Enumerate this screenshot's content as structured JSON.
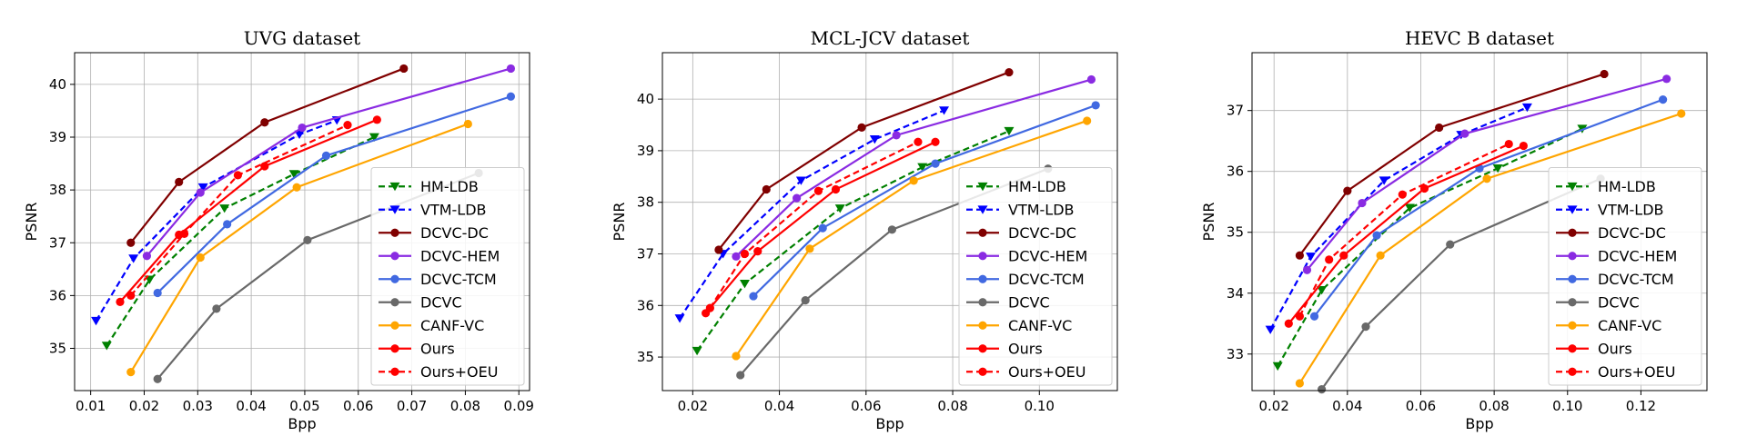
{
  "chart_data": [
    {
      "type": "line",
      "title": "UVG dataset",
      "xlabel": "Bpp",
      "ylabel": "PSNR",
      "xlim": [
        0.007,
        0.092
      ],
      "ylim": [
        34.2,
        40.6
      ],
      "xticks": [
        0.01,
        0.02,
        0.03,
        0.04,
        0.05,
        0.06,
        0.07,
        0.08,
        0.09
      ],
      "xtick_labels": [
        "0.01",
        "0.02",
        "0.03",
        "0.04",
        "0.05",
        "0.06",
        "0.07",
        "0.08",
        "0.09"
      ],
      "yticks": [
        35,
        36,
        37,
        38,
        39,
        40
      ],
      "ytick_labels": [
        "35",
        "36",
        "37",
        "38",
        "39",
        "40"
      ],
      "grid": true,
      "legend_position": "lower-right",
      "series": [
        {
          "name": "HM-LDB",
          "color": "#008000",
          "dashed": true,
          "marker": "triangle-down",
          "x": [
            0.013,
            0.021,
            0.035,
            0.048,
            0.063
          ],
          "y": [
            35.05,
            36.3,
            37.65,
            38.3,
            39.0
          ]
        },
        {
          "name": "VTM-LDB",
          "color": "#0000ff",
          "dashed": true,
          "marker": "triangle-down",
          "x": [
            0.011,
            0.018,
            0.031,
            0.049,
            0.056
          ],
          "y": [
            35.52,
            36.7,
            38.05,
            39.05,
            39.32
          ]
        },
        {
          "name": "DCVC-DC",
          "color": "#800000",
          "dashed": false,
          "marker": "circle",
          "x": [
            0.0175,
            0.0265,
            0.0425,
            0.0685
          ],
          "y": [
            37.0,
            38.15,
            39.28,
            40.3
          ]
        },
        {
          "name": "DCVC-HEM",
          "color": "#8a2be2",
          "dashed": false,
          "marker": "circle",
          "x": [
            0.0205,
            0.0305,
            0.0495,
            0.0885
          ],
          "y": [
            36.75,
            37.95,
            39.18,
            40.3
          ]
        },
        {
          "name": "DCVC-TCM",
          "color": "#4169e1",
          "dashed": false,
          "marker": "circle",
          "x": [
            0.0225,
            0.0355,
            0.054,
            0.0885
          ],
          "y": [
            36.05,
            37.35,
            38.65,
            39.77
          ]
        },
        {
          "name": "DCVC",
          "color": "#696969",
          "dashed": false,
          "marker": "circle",
          "x": [
            0.0225,
            0.0335,
            0.0505,
            0.0825
          ],
          "y": [
            34.42,
            35.75,
            37.05,
            38.32
          ]
        },
        {
          "name": "CANF-VC",
          "color": "#ffa500",
          "dashed": false,
          "marker": "circle",
          "x": [
            0.0175,
            0.0305,
            0.0485,
            0.0805
          ],
          "y": [
            34.55,
            36.72,
            38.05,
            39.25
          ]
        },
        {
          "name": "Ours",
          "color": "#ff0000",
          "dashed": false,
          "marker": "circle",
          "x": [
            0.0155,
            0.0265,
            0.0425,
            0.0635
          ],
          "y": [
            35.88,
            37.15,
            38.45,
            39.33
          ]
        },
        {
          "name": "Ours+OEU",
          "color": "#ff0000",
          "dashed": true,
          "marker": "circle",
          "x": [
            0.0175,
            0.0275,
            0.0375,
            0.058
          ],
          "y": [
            36.0,
            37.17,
            38.28,
            39.23
          ]
        }
      ]
    },
    {
      "type": "line",
      "title": "MCL-JCV dataset",
      "xlabel": "Bpp",
      "ylabel": "PSNR",
      "xlim": [
        0.013,
        0.118
      ],
      "ylim": [
        34.35,
        40.9
      ],
      "xticks": [
        0.02,
        0.04,
        0.06,
        0.08,
        0.1
      ],
      "xtick_labels": [
        "0.02",
        "0.04",
        "0.06",
        "0.08",
        "0.10"
      ],
      "yticks": [
        35,
        36,
        37,
        38,
        39,
        40
      ],
      "ytick_labels": [
        "35",
        "36",
        "37",
        "38",
        "39",
        "40"
      ],
      "grid": true,
      "legend_position": "lower-right",
      "series": [
        {
          "name": "HM-LDB",
          "color": "#008000",
          "dashed": true,
          "marker": "triangle-down",
          "x": [
            0.021,
            0.032,
            0.054,
            0.073,
            0.093
          ],
          "y": [
            35.12,
            36.42,
            37.88,
            38.68,
            39.38
          ]
        },
        {
          "name": "VTM-LDB",
          "color": "#0000ff",
          "dashed": true,
          "marker": "triangle-down",
          "x": [
            0.017,
            0.027,
            0.045,
            0.062,
            0.078
          ],
          "y": [
            35.75,
            37.0,
            38.42,
            39.22,
            39.78
          ]
        },
        {
          "name": "DCVC-DC",
          "color": "#800000",
          "dashed": false,
          "marker": "circle",
          "x": [
            0.026,
            0.037,
            0.059,
            0.093
          ],
          "y": [
            37.08,
            38.25,
            39.45,
            40.52
          ]
        },
        {
          "name": "DCVC-HEM",
          "color": "#8a2be2",
          "dashed": false,
          "marker": "circle",
          "x": [
            0.03,
            0.044,
            0.067,
            0.112
          ],
          "y": [
            36.95,
            38.08,
            39.3,
            40.38
          ]
        },
        {
          "name": "DCVC-TCM",
          "color": "#4169e1",
          "dashed": false,
          "marker": "circle",
          "x": [
            0.034,
            0.05,
            0.076,
            0.113
          ],
          "y": [
            36.18,
            37.5,
            38.75,
            39.88
          ]
        },
        {
          "name": "DCVC",
          "color": "#696969",
          "dashed": false,
          "marker": "circle",
          "x": [
            0.031,
            0.046,
            0.066,
            0.102
          ],
          "y": [
            34.65,
            36.1,
            37.47,
            38.65
          ]
        },
        {
          "name": "CANF-VC",
          "color": "#ffa500",
          "dashed": false,
          "marker": "circle",
          "x": [
            0.03,
            0.047,
            0.071,
            0.111
          ],
          "y": [
            35.02,
            37.1,
            38.42,
            39.58
          ]
        },
        {
          "name": "Ours",
          "color": "#ff0000",
          "dashed": false,
          "marker": "circle",
          "x": [
            0.023,
            0.035,
            0.053,
            0.076
          ],
          "y": [
            35.85,
            37.05,
            38.25,
            39.17
          ]
        },
        {
          "name": "Ours+OEU",
          "color": "#ff0000",
          "dashed": true,
          "marker": "circle",
          "x": [
            0.024,
            0.032,
            0.049,
            0.072
          ],
          "y": [
            35.95,
            37.0,
            38.22,
            39.17
          ]
        }
      ]
    },
    {
      "type": "line",
      "title": "HEVC B dataset",
      "xlabel": "Bpp",
      "ylabel": "PSNR",
      "xlim": [
        0.014,
        0.138
      ],
      "ylim": [
        32.4,
        37.95
      ],
      "xticks": [
        0.02,
        0.04,
        0.06,
        0.08,
        0.1,
        0.12
      ],
      "xtick_labels": [
        "0.02",
        "0.04",
        "0.06",
        "0.08",
        "0.10",
        "0.12"
      ],
      "yticks": [
        33,
        34,
        35,
        36,
        37
      ],
      "ytick_labels": [
        "33",
        "34",
        "35",
        "36",
        "37"
      ],
      "grid": true,
      "legend_position": "lower-right",
      "series": [
        {
          "name": "HM-LDB",
          "color": "#008000",
          "dashed": true,
          "marker": "triangle-down",
          "x": [
            0.021,
            0.033,
            0.057,
            0.081,
            0.104
          ],
          "y": [
            32.8,
            34.05,
            35.4,
            36.05,
            36.7
          ]
        },
        {
          "name": "VTM-LDB",
          "color": "#0000ff",
          "dashed": true,
          "marker": "triangle-down",
          "x": [
            0.019,
            0.03,
            0.05,
            0.071,
            0.089
          ],
          "y": [
            33.4,
            34.6,
            35.85,
            36.6,
            37.05
          ]
        },
        {
          "name": "DCVC-DC",
          "color": "#800000",
          "dashed": false,
          "marker": "circle",
          "x": [
            0.027,
            0.04,
            0.065,
            0.11
          ],
          "y": [
            34.62,
            35.68,
            36.72,
            37.6
          ]
        },
        {
          "name": "DCVC-HEM",
          "color": "#8a2be2",
          "dashed": false,
          "marker": "circle",
          "x": [
            0.029,
            0.044,
            0.072,
            0.127
          ],
          "y": [
            34.38,
            35.48,
            36.62,
            37.52
          ]
        },
        {
          "name": "DCVC-TCM",
          "color": "#4169e1",
          "dashed": false,
          "marker": "circle",
          "x": [
            0.031,
            0.048,
            0.076,
            0.126
          ],
          "y": [
            33.62,
            34.95,
            36.05,
            37.18
          ]
        },
        {
          "name": "DCVC",
          "color": "#696969",
          "dashed": false,
          "marker": "circle",
          "x": [
            0.033,
            0.045,
            0.068,
            0.109
          ],
          "y": [
            32.42,
            33.45,
            34.8,
            35.88
          ]
        },
        {
          "name": "CANF-VC",
          "color": "#ffa500",
          "dashed": false,
          "marker": "circle",
          "x": [
            0.027,
            0.049,
            0.078,
            0.131
          ],
          "y": [
            32.52,
            34.62,
            35.88,
            36.95
          ]
        },
        {
          "name": "Ours",
          "color": "#ff0000",
          "dashed": false,
          "marker": "circle",
          "x": [
            0.024,
            0.039,
            0.061,
            0.088
          ],
          "y": [
            33.5,
            34.62,
            35.72,
            36.42
          ]
        },
        {
          "name": "Ours+OEU",
          "color": "#ff0000",
          "dashed": true,
          "marker": "circle",
          "x": [
            0.027,
            0.035,
            0.055,
            0.084
          ],
          "y": [
            33.62,
            34.55,
            35.62,
            36.45
          ]
        }
      ]
    }
  ]
}
